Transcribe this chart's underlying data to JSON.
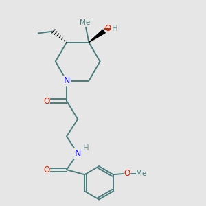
{
  "bg_color": "#e6e6e6",
  "bond_color": "#4a7c7c",
  "bond_width": 1.4,
  "N_color": "#1010ee",
  "O_color": "#cc2200",
  "text_color": "#4a7c7c",
  "H_color": "#7a9a9a",
  "figsize": [
    3.0,
    3.0
  ],
  "dpi": 100,
  "xlim": [
    0,
    10
  ],
  "ylim": [
    0,
    10
  ]
}
